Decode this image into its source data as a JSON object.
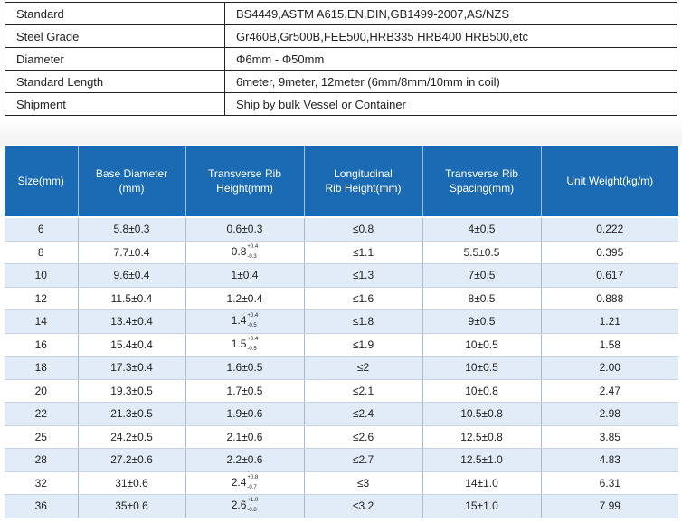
{
  "spec": [
    {
      "key": "Standard",
      "value": "BS4449,ASTM A615,EN,DIN,GB1499-2007,AS/NZS"
    },
    {
      "key": "Steel Grade",
      "value": "Gr460B,Gr500B,FEE500,HRB335 HRB400 HRB500,etc"
    },
    {
      "key": "Diameter",
      "value": "Φ6mm - Φ50mm"
    },
    {
      "key": "Standard Length",
      "value": "6meter, 9meter, 12meter (6mm/8mm/10mm in coil)"
    },
    {
      "key": "Shipment",
      "value": "Ship by bulk Vessel or Container"
    }
  ],
  "size_table": {
    "headers": [
      [
        "Size(mm)"
      ],
      [
        "Base Diameter",
        "(mm)"
      ],
      [
        "Transverse Rib",
        "Height(mm)"
      ],
      [
        "Longitudinal",
        "Rib Height(mm)"
      ],
      [
        "Transverse Rib",
        "Spacing(mm)"
      ],
      [
        "Unit Weight(kg/m)"
      ]
    ],
    "rows": [
      {
        "size": "6",
        "base": "5.8±0.3",
        "rib_h": "0.6±0.3",
        "rib_h_up": "",
        "rib_h_lo": "",
        "long_h": "≤0.8",
        "spacing": "4±0.5",
        "weight": "0.222"
      },
      {
        "size": "8",
        "base": "7.7±0.4",
        "rib_h": "0.8",
        "rib_h_up": "+0.4",
        "rib_h_lo": "-0.3",
        "long_h": "≤1.1",
        "spacing": "5.5±0.5",
        "weight": "0.395"
      },
      {
        "size": "10",
        "base": "9.6±0.4",
        "rib_h": "1±0.4",
        "rib_h_up": "",
        "rib_h_lo": "",
        "long_h": "≤1.3",
        "spacing": "7±0.5",
        "weight": "0.617"
      },
      {
        "size": "12",
        "base": "11.5±0.4",
        "rib_h": "1.2±0.4",
        "rib_h_up": "",
        "rib_h_lo": "",
        "long_h": "≤1.6",
        "spacing": "8±0.5",
        "weight": "0.888"
      },
      {
        "size": "14",
        "base": "13.4±0.4",
        "rib_h": "1.4",
        "rib_h_up": "+0.4",
        "rib_h_lo": "-0.5",
        "long_h": "≤1.8",
        "spacing": "9±0.5",
        "weight": "1.21"
      },
      {
        "size": "16",
        "base": "15.4±0.4",
        "rib_h": "1.5",
        "rib_h_up": "+0.4",
        "rib_h_lo": "-0.5",
        "long_h": "≤1.9",
        "spacing": "10±0.5",
        "weight": "1.58"
      },
      {
        "size": "18",
        "base": "17.3±0.4",
        "rib_h": "1.6±0.5",
        "rib_h_up": "",
        "rib_h_lo": "",
        "long_h": "≤2",
        "spacing": "10±0.5",
        "weight": "2.00"
      },
      {
        "size": "20",
        "base": "19.3±0.5",
        "rib_h": "1.7±0.5",
        "rib_h_up": "",
        "rib_h_lo": "",
        "long_h": "≤2.1",
        "spacing": "10±0.8",
        "weight": "2.47"
      },
      {
        "size": "22",
        "base": "21.3±0.5",
        "rib_h": "1.9±0.6",
        "rib_h_up": "",
        "rib_h_lo": "",
        "long_h": "≤2.4",
        "spacing": "10.5±0.8",
        "weight": "2.98"
      },
      {
        "size": "25",
        "base": "24.2±0.5",
        "rib_h": "2.1±0.6",
        "rib_h_up": "",
        "rib_h_lo": "",
        "long_h": "≤2.6",
        "spacing": "12.5±0.8",
        "weight": "3.85"
      },
      {
        "size": "28",
        "base": "27.2±0.6",
        "rib_h": "2.2±0.6",
        "rib_h_up": "",
        "rib_h_lo": "",
        "long_h": "≤2.7",
        "spacing": "12.5±1.0",
        "weight": "4.83"
      },
      {
        "size": "32",
        "base": "31±0.6",
        "rib_h": "2.4",
        "rib_h_up": "+0.8",
        "rib_h_lo": "-0.7",
        "long_h": "≤3",
        "spacing": "14±1.0",
        "weight": "6.31"
      },
      {
        "size": "36",
        "base": "35±0.6",
        "rib_h": "2.6",
        "rib_h_up": "+1.0",
        "rib_h_lo": "-0.8",
        "long_h": "≤3.2",
        "spacing": "15±1.0",
        "weight": "7.99"
      }
    ]
  }
}
